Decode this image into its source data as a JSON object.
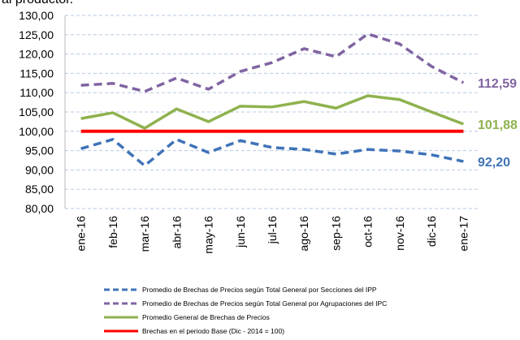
{
  "chart_data": {
    "type": "line",
    "title": "al productor.",
    "categories": [
      "ene-16",
      "feb-16",
      "mar-16",
      "abr-16",
      "may-16",
      "jun-16",
      "jul-16",
      "ago-16",
      "sep-16",
      "oct-16",
      "nov-16",
      "dic-16",
      "ene-17"
    ],
    "ylim": [
      80,
      130
    ],
    "yticks": [
      {
        "value": 80,
        "label": "80,00"
      },
      {
        "value": 85,
        "label": "85,00"
      },
      {
        "value": 90,
        "label": "90,00"
      },
      {
        "value": 95,
        "label": "95,00"
      },
      {
        "value": 100,
        "label": "100,00"
      },
      {
        "value": 105,
        "label": "105,00"
      },
      {
        "value": 110,
        "label": "110,00"
      },
      {
        "value": 115,
        "label": "115,00"
      },
      {
        "value": 120,
        "label": "120,00"
      },
      {
        "value": 125,
        "label": "125,00"
      },
      {
        "value": 130,
        "label": "130,00"
      }
    ],
    "grid": true,
    "series": [
      {
        "name": "Promedio de Brechas de Precios según Total General por Secciones del IPP",
        "color": "#3f73b8",
        "dash": true,
        "values": [
          95.5,
          97.9,
          91.1,
          97.9,
          94.5,
          97.6,
          95.8,
          95.3,
          94.1,
          95.3,
          94.9,
          93.9,
          92.2
        ],
        "value_labels": [
          null,
          null,
          null,
          null,
          null,
          null,
          null,
          null,
          null,
          null,
          null,
          null,
          "92,20"
        ]
      },
      {
        "name": "Promedio de Brechas de Precios según Total General por Agrupaciones del IPC",
        "color": "#8064a2",
        "dash": true,
        "values": [
          111.9,
          112.4,
          110.3,
          113.8,
          110.9,
          115.5,
          117.8,
          121.4,
          119.3,
          125.2,
          122.6,
          116.8,
          112.59
        ],
        "value_labels": [
          null,
          null,
          null,
          null,
          null,
          null,
          null,
          null,
          null,
          null,
          null,
          null,
          "112,59"
        ]
      },
      {
        "name": "Promedio General de Brechas de Precios",
        "color": "#8fb24e",
        "dash": false,
        "values": [
          103.3,
          104.8,
          100.8,
          105.8,
          102.5,
          106.5,
          106.3,
          107.7,
          106.0,
          109.2,
          108.2,
          105.0,
          101.88
        ],
        "value_labels": [
          null,
          null,
          null,
          null,
          null,
          null,
          null,
          null,
          null,
          null,
          null,
          null,
          "101,88"
        ]
      },
      {
        "name": "Brechas en el periodo Base (Dic - 2014 = 100)",
        "color": "#ff0000",
        "dash": false,
        "values": [
          100,
          100,
          100,
          100,
          100,
          100,
          100,
          100,
          100,
          100,
          100,
          100,
          100
        ]
      }
    ]
  }
}
